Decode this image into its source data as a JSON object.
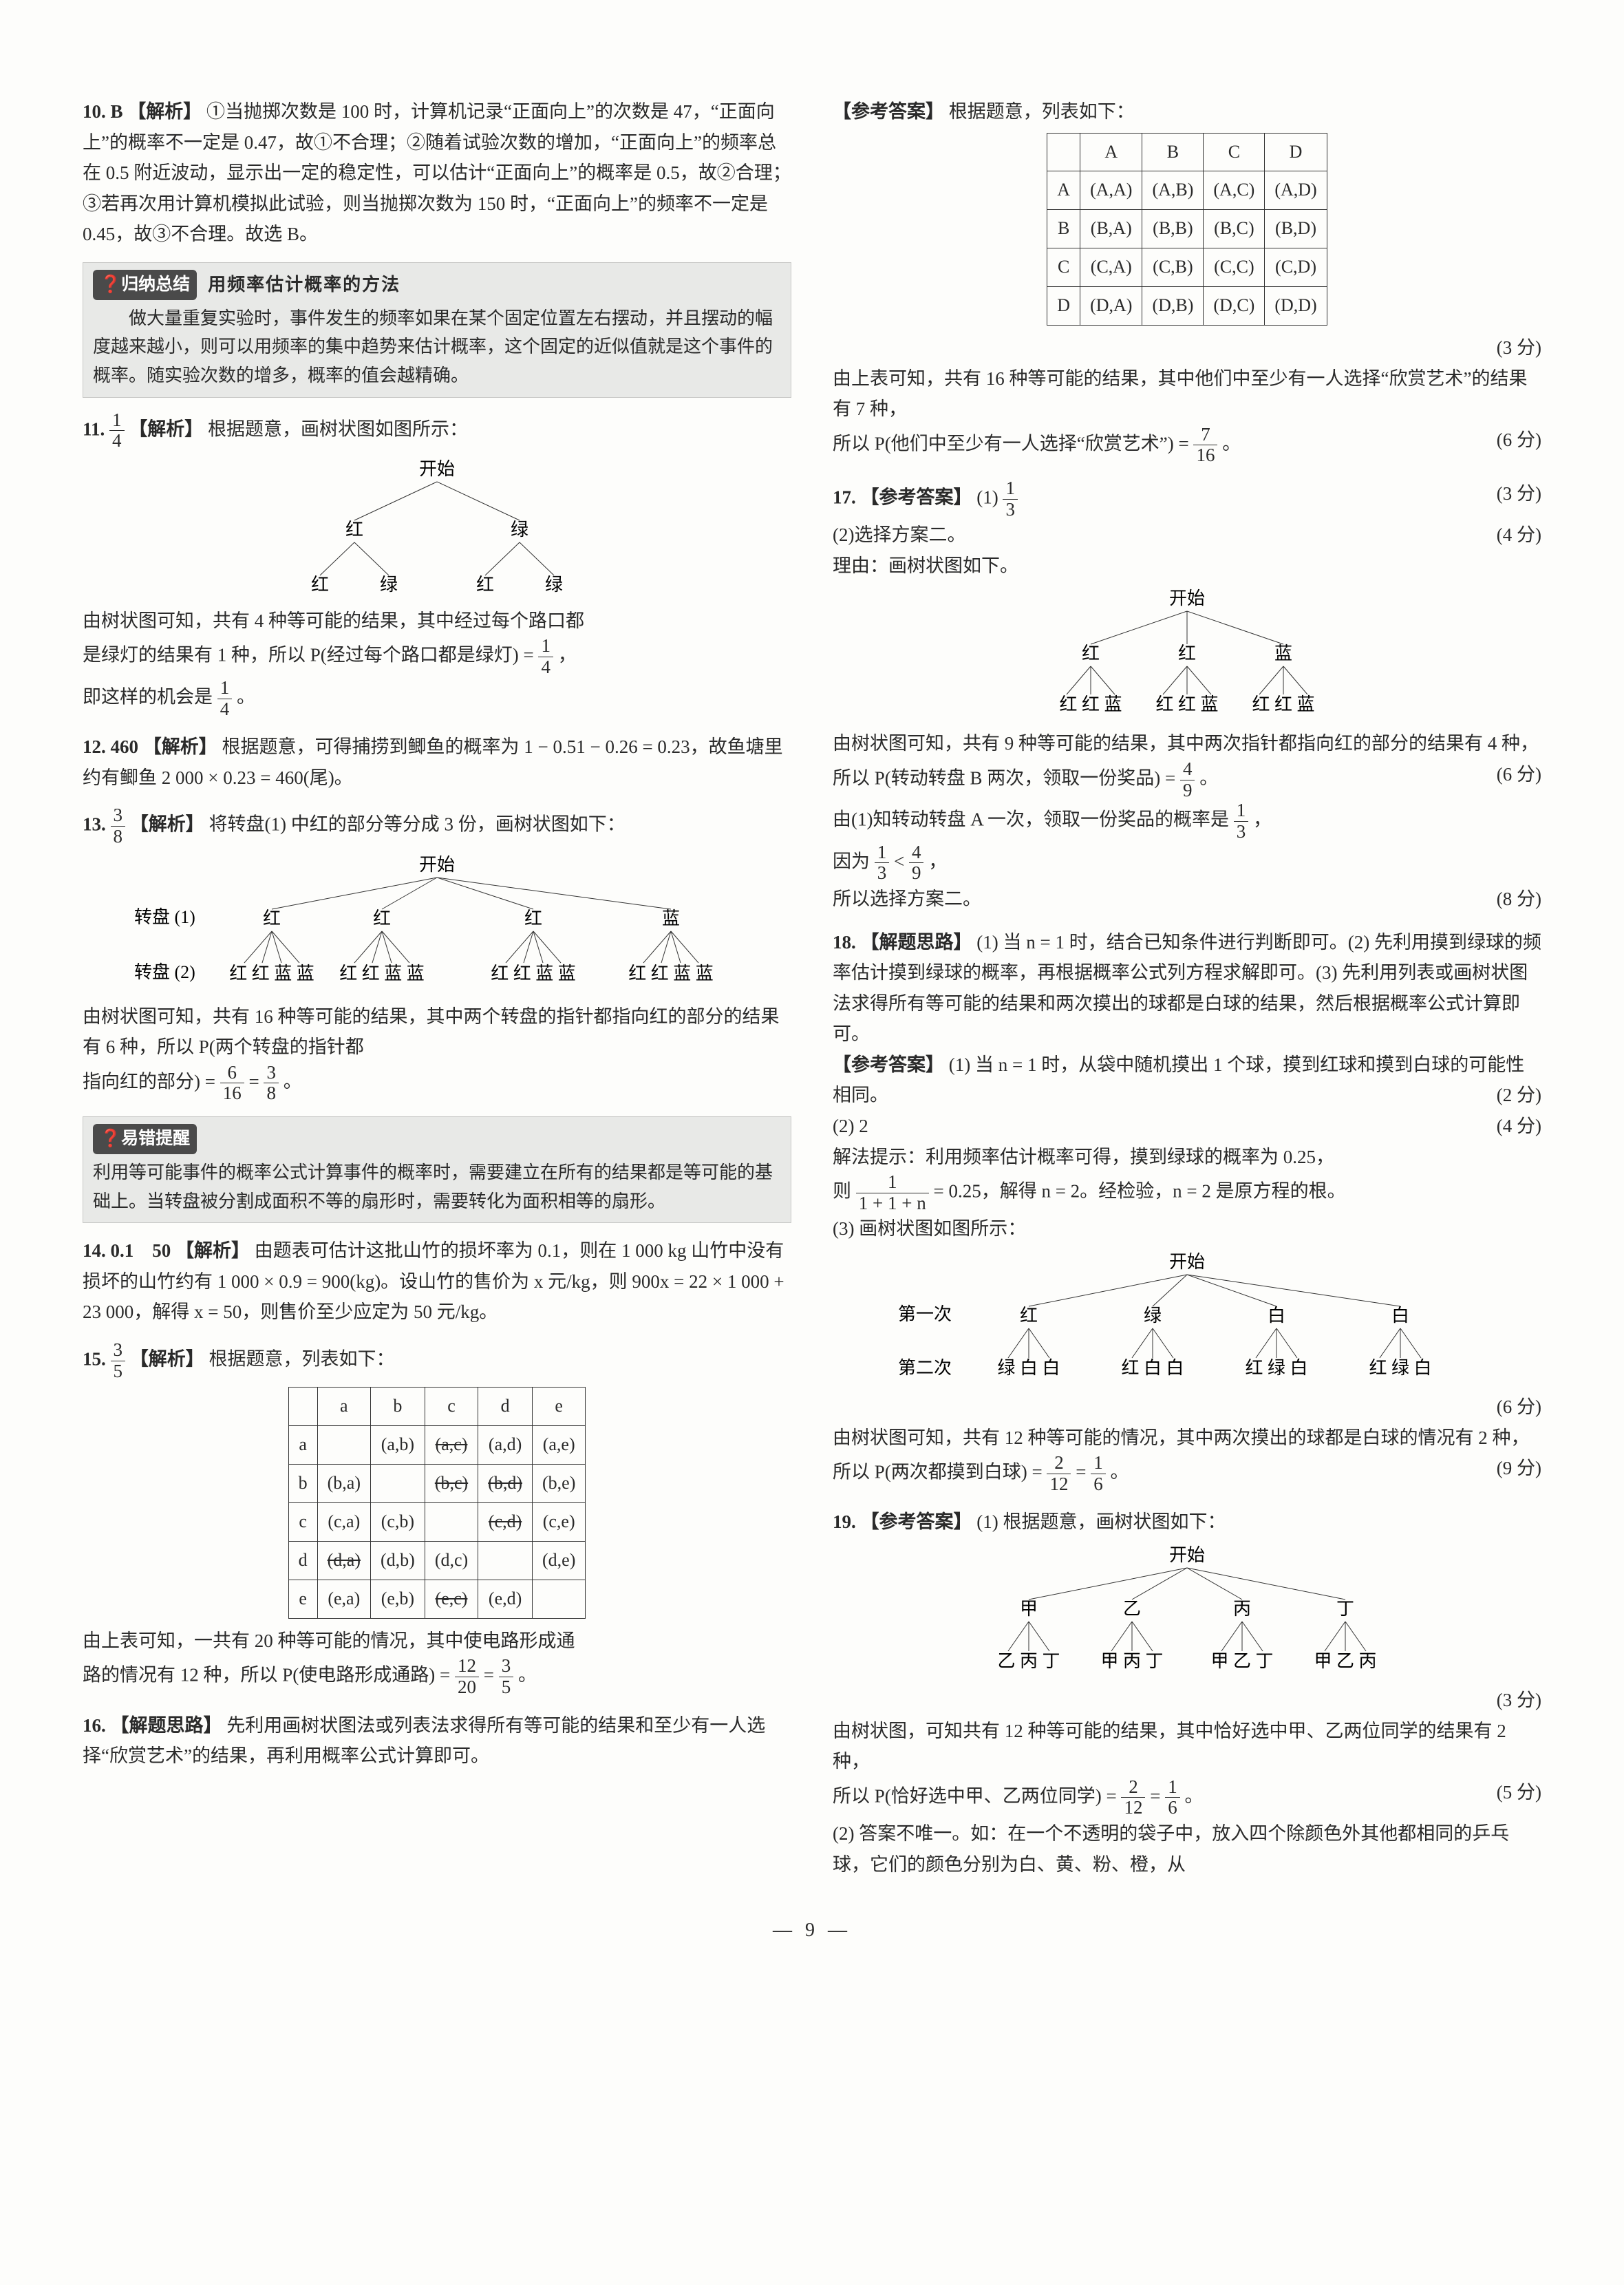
{
  "page_number": "— 9 —",
  "left": {
    "q10": {
      "num": "10. B",
      "tag": "【解析】",
      "body": "①当抛掷次数是 100 时，计算机记录“正面向上”的次数是 47，“正面向上”的概率不一定是 0.47，故①不合理；②随着试验次数的增加，“正面向上”的频率总在 0.5 附近波动，显示出一定的稳定性，可以估计“正面向上”的概率是 0.5，故②合理；③若再次用计算机模拟此试验，则当抛掷次数为 150 时，“正面向上”的频率不一定是 0.45，故③不合理。故选 B。"
    },
    "callout1": {
      "icon": "归纳总结",
      "title": "用频率估计概率的方法",
      "body": "做大量重复实验时，事件发生的频率如果在某个固定位置左右摆动，并且摆动的幅度越来越小，则可以用频率的集中趋势来估计概率，这个固定的近似值就是这个事件的概率。随实验次数的增多，概率的值会越精确。"
    },
    "q11": {
      "num": "11.",
      "frac_n": "1",
      "frac_d": "4",
      "tag": "【解析】",
      "body": "根据题意，画树状图如图所示：",
      "tree_root": "开始",
      "tree_l1": [
        "红",
        "绿"
      ],
      "tree_l2": [
        "红",
        "绿",
        "红",
        "绿"
      ],
      "after1": "由树状图可知，共有 4 种等可能的结果，其中经过每个路口都",
      "after2_a": "是绿灯的结果有 1 种，所以 P(经过每个路口都是绿灯) =",
      "after2_n": "1",
      "after2_d": "4",
      "after2_b": "，",
      "after3_a": "即这样的机会是",
      "after3_n": "1",
      "after3_d": "4",
      "after3_b": "。"
    },
    "q12": {
      "num": "12. 460",
      "tag": "【解析】",
      "body": "根据题意，可得捕捞到鲫鱼的概率为 1 − 0.51 − 0.26 = 0.23，故鱼塘里约有鲫鱼 2 000 × 0.23 = 460(尾)。"
    },
    "q13": {
      "num": "13.",
      "frac_n": "3",
      "frac_d": "8",
      "tag": "【解析】",
      "body": "将转盘(1) 中红的部分等分成 3 份，画树状图如下：",
      "tree_root": "开始",
      "row1_label": "转盘 (1)",
      "row1": [
        "红",
        "红",
        "红",
        "蓝"
      ],
      "row2_label": "转盘 (2)",
      "row2": [
        "红 红 蓝 蓝",
        "红 红 蓝 蓝",
        "红 红 蓝 蓝",
        "红 红 蓝 蓝"
      ],
      "after1": "由树状图可知，共有 16 种等可能的结果，其中两个转盘的指针都指向红的部分的结果有 6 种，所以 P(两个转盘的指针都",
      "after2_a": "指向红的部分) =",
      "after2_n1": "6",
      "after2_d1": "16",
      "after2_eq": " = ",
      "after2_n2": "3",
      "after2_d2": "8",
      "after2_b": "。"
    },
    "callout2": {
      "icon": "易错提醒",
      "body": "利用等可能事件的概率公式计算事件的概率时，需要建立在所有的结果都是等可能的基础上。当转盘被分割成面积不等的扇形时，需要转化为面积相等的扇形。"
    },
    "q14": {
      "num": "14. 0.1　50",
      "tag": "【解析】",
      "body": "由题表可估计这批山竹的损坏率为 0.1，则在 1 000 kg 山竹中没有损坏的山竹约有 1 000 × 0.9 = 900(kg)。设山竹的售价为 x 元/kg，则 900x = 22 × 1 000 + 23 000，解得 x = 50，则售价至少应定为 50 元/kg。"
    },
    "q15": {
      "num": "15.",
      "frac_n": "3",
      "frac_d": "5",
      "tag": "【解析】",
      "body": "根据题意，列表如下：",
      "table": {
        "headers": [
          "",
          "a",
          "b",
          "c",
          "d",
          "e"
        ],
        "rows": [
          [
            "a",
            "",
            "(a,b)",
            "(a,c)",
            "(a,d)",
            "(a,e)"
          ],
          [
            "b",
            "(b,a)",
            "",
            "(b,c)",
            "(b,d)",
            "(b,e)"
          ],
          [
            "c",
            "(c,a)",
            "(c,b)",
            "",
            "(c,d)",
            "(c,e)"
          ],
          [
            "d",
            "(d,a)",
            "(d,b)",
            "(d,c)",
            "",
            "(d,e)"
          ],
          [
            "e",
            "(e,a)",
            "(e,b)",
            "(e,c)",
            "(e,d)",
            ""
          ]
        ],
        "strike_cells": [
          [
            0,
            1
          ],
          [
            0,
            3
          ],
          [
            1,
            2
          ],
          [
            1,
            3
          ],
          [
            1,
            4
          ],
          [
            2,
            3
          ],
          [
            2,
            4
          ],
          [
            3,
            1
          ],
          [
            4,
            3
          ]
        ]
      },
      "after1": "由上表可知，一共有 20 种等可能的情况，其中使电路形成通",
      "after2_a": "路的情况有 12 种，所以 P(使电路形成通路) =",
      "after2_n1": "12",
      "after2_d1": "20",
      "after2_eq": " = ",
      "after2_n2": "3",
      "after2_d2": "5",
      "after2_b": "。"
    },
    "q16": {
      "num": "16.",
      "tag": "【解题思路】",
      "body": "先利用画树状图法或列表法求得所有等可能的结果和至少有一人选择“欣赏艺术”的结果，再利用概率公式计算即可。"
    }
  },
  "right": {
    "q16b": {
      "tag": "【参考答案】",
      "body": "根据题意，列表如下：",
      "table": {
        "headers": [
          "",
          "A",
          "B",
          "C",
          "D"
        ],
        "rows": [
          [
            "A",
            "(A,A)",
            "(A,B)",
            "(A,C)",
            "(A,D)"
          ],
          [
            "B",
            "(B,A)",
            "(B,B)",
            "(B,C)",
            "(B,D)"
          ],
          [
            "C",
            "(C,A)",
            "(C,B)",
            "(C,C)",
            "(C,D)"
          ],
          [
            "D",
            "(D,A)",
            "(D,B)",
            "(D,C)",
            "(D,D)"
          ]
        ]
      },
      "score1": "(3 分)",
      "after1": "由上表可知，共有 16 种等可能的结果，其中他们中至少有一人选择“欣赏艺术”的结果有 7 种，",
      "after2_a": "所以 P(他们中至少有一人选择“欣赏艺术”) =",
      "after2_n": "7",
      "after2_d": "16",
      "after2_b": "。",
      "score2": "(6 分)"
    },
    "q17": {
      "num": "17.",
      "tag": "【参考答案】",
      "p1_a": "(1)",
      "p1_n": "1",
      "p1_d": "3",
      "score1": "(3 分)",
      "p2": "(2)选择方案二。",
      "score2": "(4 分)",
      "reason": "理由：画树状图如下。",
      "tree_root": "开始",
      "tree_l1": [
        "红",
        "红",
        "蓝"
      ],
      "tree_l2": [
        "红 红 蓝",
        "红 红 蓝",
        "红 红 蓝"
      ],
      "after1": "由树状图可知，共有 9 种等可能的结果，其中两次指针都指向红的部分的结果有 4 种，",
      "after2_a": "所以 P(转动转盘 B 两次，领取一份奖品) =",
      "after2_n": "4",
      "after2_d": "9",
      "after2_b": "。",
      "score3": "(6 分)",
      "after3_a": "由(1)知转动转盘 A 一次，领取一份奖品的概率是",
      "after3_n": "1",
      "after3_d": "3",
      "after3_b": "，",
      "after4_a": "因为",
      "after4_n1": "1",
      "after4_d1": "3",
      "after4_mid": " < ",
      "after4_n2": "4",
      "after4_d2": "9",
      "after4_b": "，",
      "after5": "所以选择方案二。",
      "score4": "(8 分)"
    },
    "q18": {
      "num": "18.",
      "tag": "【解题思路】",
      "think": "(1) 当 n = 1 时，结合已知条件进行判断即可。(2) 先利用摸到绿球的频率估计摸到绿球的概率，再根据概率公式列方程求解即可。(3) 先利用列表或画树状图法求得所有等可能的结果和两次摸出的球都是白球的结果，然后根据概率公式计算即可。",
      "ans_tag": "【参考答案】",
      "p1": "(1) 当 n = 1 时，从袋中随机摸出 1 个球，摸到红球和摸到白球的可能性相同。",
      "score1": "(2 分)",
      "p2": "(2) 2",
      "score2": "(4 分)",
      "hint": "解法提示：利用频率估计概率可得，摸到绿球的概率为 0.25，",
      "eq_a": "则",
      "eq_n": "1",
      "eq_d": "1 + 1 + n",
      "eq_b": "= 0.25，解得 n = 2。经检验，n = 2 是原方程的根。",
      "p3": "(3) 画树状图如图所示：",
      "tree_root": "开始",
      "row1_label": "第一次",
      "row1": [
        "红",
        "绿",
        "白",
        "白"
      ],
      "row2_label": "第二次",
      "row2": [
        "绿 白 白",
        "红 白 白",
        "红 绿 白",
        "红 绿 白"
      ],
      "score3": "(6 分)",
      "after1": "由树状图可知，共有 12 种等可能的情况，其中两次摸出的球都是白球的情况有 2 种，",
      "after2_a": "所以 P(两次都摸到白球) =",
      "after2_n1": "2",
      "after2_d1": "12",
      "after2_eq": " = ",
      "after2_n2": "1",
      "after2_d2": "6",
      "after2_b": "。",
      "score4": "(9 分)"
    },
    "q19": {
      "num": "19.",
      "tag": "【参考答案】",
      "p1": "(1) 根据题意，画树状图如下：",
      "tree_root": "开始",
      "tree_l1": [
        "甲",
        "乙",
        "丙",
        "丁"
      ],
      "tree_l2": [
        "乙 丙 丁",
        "甲 丙 丁",
        "甲 乙 丁",
        "甲 乙 丙"
      ],
      "score1": "(3 分)",
      "after1": "由树状图，可知共有 12 种等可能的结果，其中恰好选中甲、乙两位同学的结果有 2 种，",
      "after2_a": "所以 P(恰好选中甲、乙两位同学) =",
      "after2_n1": "2",
      "after2_d1": "12",
      "after2_eq": " = ",
      "after2_n2": "1",
      "after2_d2": "6",
      "after2_b": "。",
      "score2": "(5 分)",
      "p2": "(2) 答案不唯一。如：在一个不透明的袋子中，放入四个除颜色外其他都相同的乒乓球，它们的颜色分别为白、黄、粉、橙，从"
    }
  }
}
